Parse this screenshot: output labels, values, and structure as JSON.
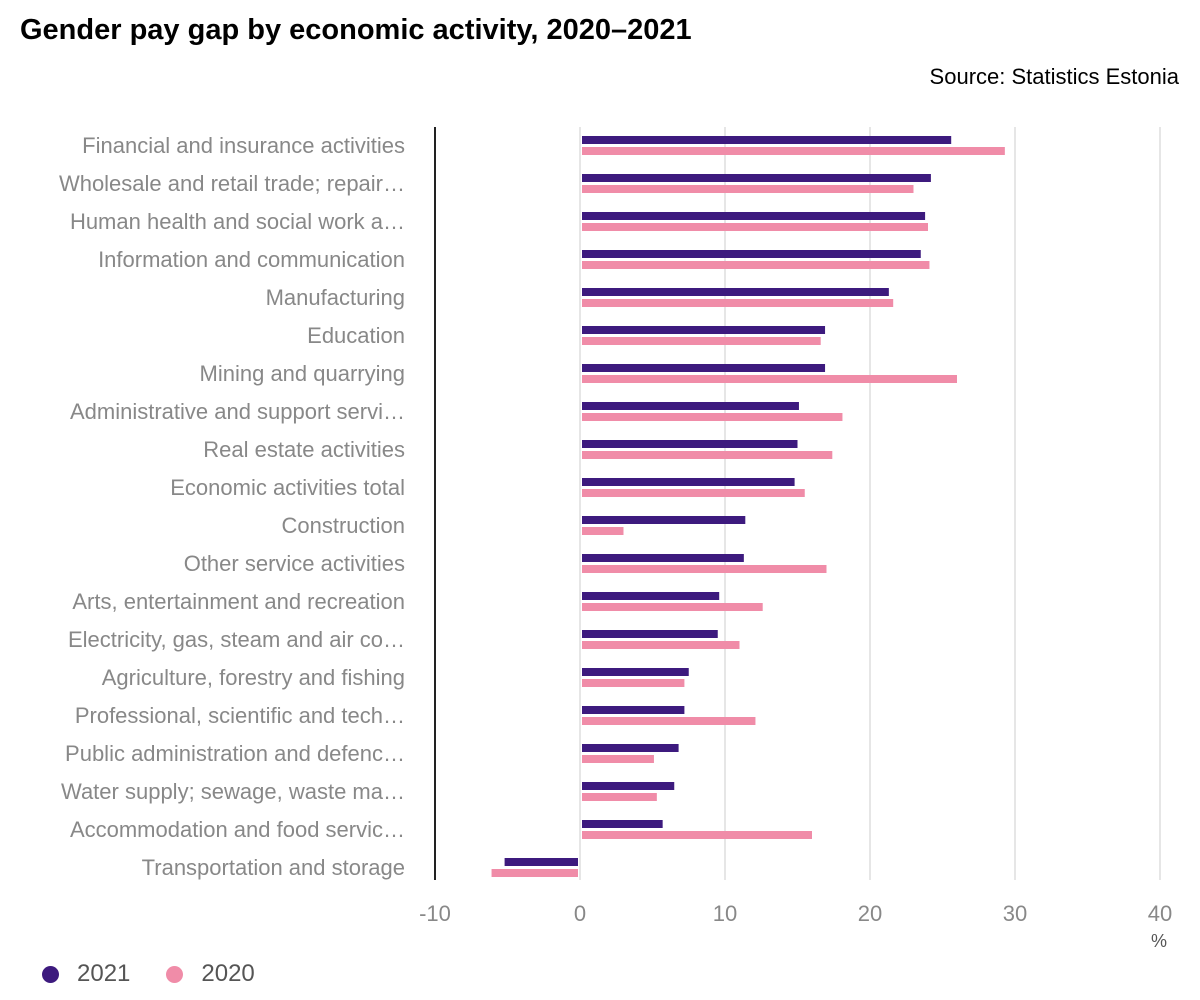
{
  "chart_data": {
    "type": "bar",
    "orientation": "horizontal",
    "title": "Gender pay gap by economic activity, 2020–2021",
    "source": "Source: Statistics Estonia",
    "xlabel": "%",
    "xlim": [
      -10,
      40
    ],
    "xticks": [
      "-10",
      "0",
      "10",
      "20",
      "30",
      "40"
    ],
    "grid": true,
    "legend_position": "bottom-left",
    "categories": [
      "Financial and insurance activities",
      "Wholesale and retail trade; repair…",
      "Human health and social work a…",
      "Information and communication",
      "Manufacturing",
      "Education",
      "Mining and quarrying",
      "Administrative and support servi…",
      "Real estate activities",
      "Economic activities total",
      "Construction",
      "Other service activities",
      "Arts, entertainment and recreation",
      "Electricity, gas, steam and air co…",
      "Agriculture, forestry and fishing",
      "Professional, scientific and tech…",
      "Public administration and defenc…",
      "Water supply; sewage, waste ma…",
      "Accommodation and food servic…",
      "Transportation and storage"
    ],
    "series": [
      {
        "name": "2021",
        "color": "#3d1a7e",
        "values": [
          25.6,
          24.2,
          23.8,
          23.5,
          21.3,
          16.9,
          16.9,
          15.1,
          15.0,
          14.8,
          11.4,
          11.3,
          9.6,
          9.5,
          7.5,
          7.2,
          6.8,
          6.5,
          5.7,
          -5.2
        ]
      },
      {
        "name": "2020",
        "color": "#f08ca8",
        "values": [
          29.3,
          23.0,
          24.0,
          24.1,
          21.6,
          16.6,
          26.0,
          18.1,
          17.4,
          15.5,
          3.0,
          17.0,
          12.6,
          11.0,
          7.2,
          12.1,
          5.1,
          5.3,
          16.0,
          -6.1
        ]
      }
    ]
  }
}
